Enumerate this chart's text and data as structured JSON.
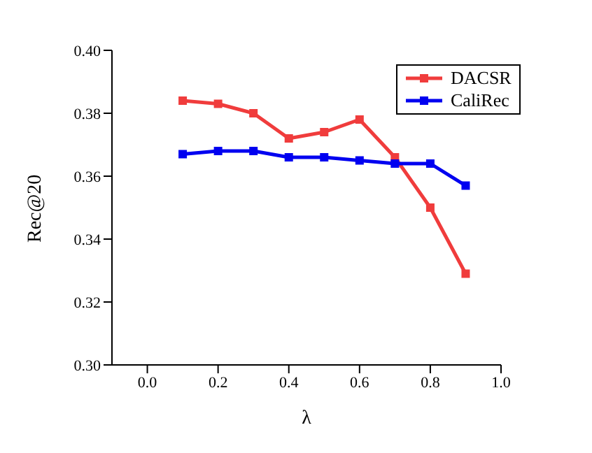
{
  "chart_data": {
    "type": "line",
    "xlabel": "λ",
    "ylabel": "Rec@20",
    "x": [
      0.1,
      0.2,
      0.3,
      0.4,
      0.5,
      0.6,
      0.7,
      0.8,
      0.9
    ],
    "series": [
      {
        "name": "DACSR",
        "color": "#f03c3c",
        "values": [
          0.384,
          0.383,
          0.38,
          0.372,
          0.374,
          0.378,
          0.366,
          0.35,
          0.329
        ]
      },
      {
        "name": "CaliRec",
        "color": "#0000f0",
        "values": [
          0.367,
          0.368,
          0.368,
          0.366,
          0.366,
          0.365,
          0.364,
          0.364,
          0.357
        ]
      }
    ],
    "xlim": [
      -0.1,
      1.0
    ],
    "xticks": [
      {
        "value": 0,
        "label": "0.0"
      },
      {
        "value": 0.2,
        "label": "0.2"
      },
      {
        "value": 0.4,
        "label": "0.4"
      },
      {
        "value": 0.6,
        "label": "0.6"
      },
      {
        "value": 0.8,
        "label": "0.8"
      },
      {
        "value": 1,
        "label": "1.0"
      }
    ],
    "ylim": [
      0.3,
      0.4
    ],
    "yticks": [
      {
        "value": 0.3,
        "label": "0.30"
      },
      {
        "value": 0.32,
        "label": "0.32"
      },
      {
        "value": 0.34,
        "label": "0.34"
      },
      {
        "value": 0.36,
        "label": "0.36"
      },
      {
        "value": 0.38,
        "label": "0.38"
      },
      {
        "value": 0.4,
        "label": "0.40"
      }
    ],
    "grid": false,
    "legend": "top right",
    "marker": "square",
    "line_style": "solid"
  }
}
